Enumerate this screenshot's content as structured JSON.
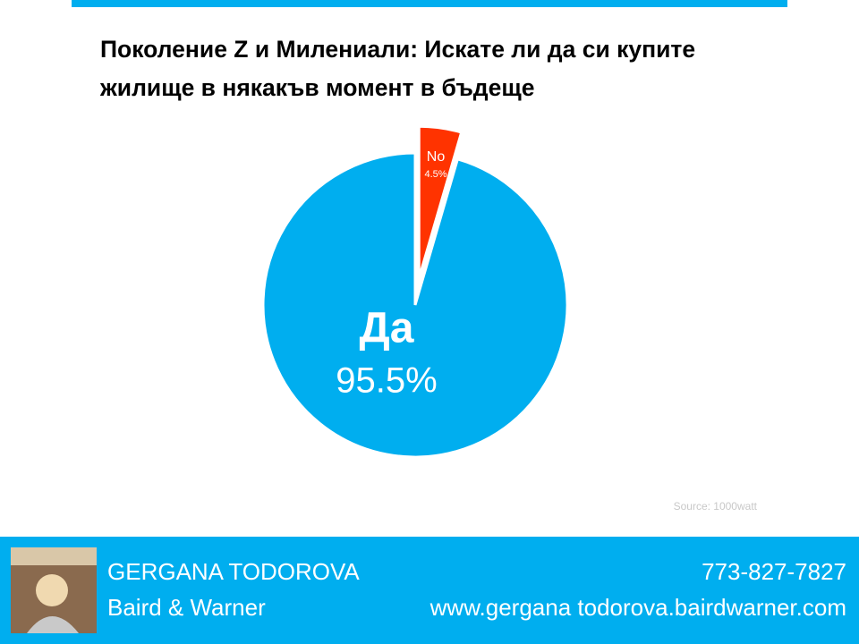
{
  "chart_data": {
    "type": "pie",
    "title": "Поколение Z и Милениали: Искате ли да си купите жилище в някакъв момент в бъдеще",
    "categories": [
      "Да",
      "No"
    ],
    "values": [
      95.5,
      4.5
    ],
    "value_labels": [
      "95.5%",
      "4.5%"
    ],
    "colors": [
      "#00aeef",
      "#ff3300"
    ],
    "source": "Source: 1000watt"
  },
  "footer": {
    "name": "GERGANA TODOROVA",
    "company": "Baird & Warner",
    "phone": "773-827-7827",
    "website": "www.gergana todorova.bairdwarner.com"
  }
}
